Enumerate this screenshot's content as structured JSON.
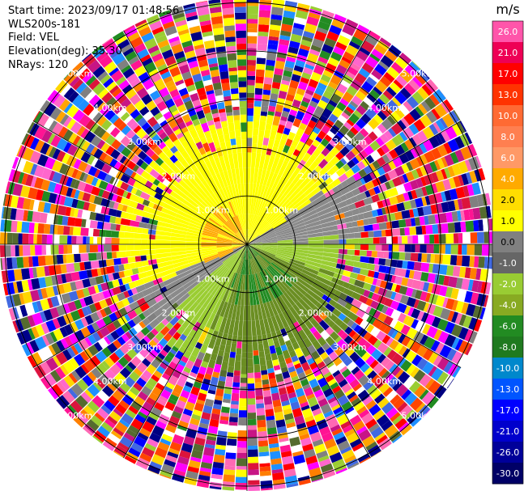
{
  "info": {
    "start_time": "Start time: 2023/09/17 01:48:56",
    "instrument": "WLS200s-181",
    "field": "Field: VEL",
    "elevation": "Elevation(deg): 35.30",
    "nrays": "NRays: 120"
  },
  "chart_data": {
    "type": "heatmap",
    "projection": "polar-ppi",
    "field": "VEL",
    "units": "m/s",
    "nrays": 120,
    "elevation_deg": 35.3,
    "range_rings_km": [
      1.0,
      2.0,
      3.0,
      4.0,
      5.0
    ],
    "range_labels": [
      "1.00km",
      "2.00km",
      "3.00km",
      "4.00km",
      "5.00km"
    ],
    "max_range_km": 5.1,
    "colorbar": {
      "title": "m/s",
      "ticks": [
        "26.0",
        "21.0",
        "17.0",
        "13.0",
        "10.0",
        "8.0",
        "6.0",
        "4.0",
        "2.0",
        "1.0",
        "0.0",
        "-1.0",
        "-2.0",
        "-4.0",
        "-6.0",
        "-8.0",
        "-10.0",
        "-13.0",
        "-17.0",
        "-21.0",
        "-26.0",
        "-30.0"
      ],
      "colors": [
        "#ff55aa",
        "#ee0055",
        "#ff0000",
        "#ff3300",
        "#ff6a33",
        "#ff7f50",
        "#ff9966",
        "#ffaa00",
        "#ffdd00",
        "#ffff00",
        "#808080",
        "#666666",
        "#99cc33",
        "#88aa22",
        "#228b22",
        "#1f7a1f",
        "#0088cc",
        "#0055ff",
        "#0000ff",
        "#0000cc",
        "#000099",
        "#000066"
      ]
    },
    "signal_range_km": 1.9,
    "noise_colors": [
      "#ff00ff",
      "#ff66cc",
      "#0000ff",
      "#000080",
      "#ffff00",
      "#ffa500",
      "#ff0000",
      "#808080",
      "#ff1493",
      "#9acd32",
      "#228b22",
      "#ff69b4",
      "#ffffff",
      "#4169e1",
      "#00008b",
      "#ff7f00",
      "#dc143c",
      "#ffd700",
      "#c71585",
      "#1e90ff",
      "#556b2f",
      "#ff4500"
    ]
  }
}
